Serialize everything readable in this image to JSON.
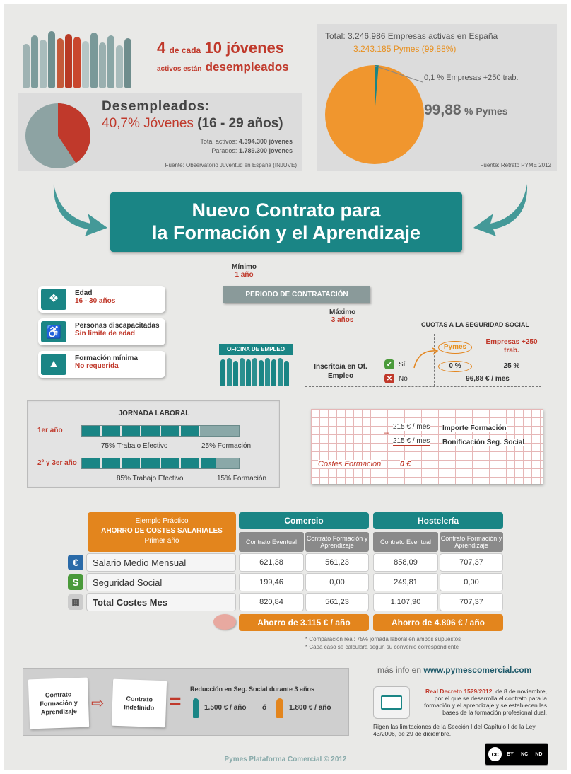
{
  "top_left": {
    "youth_line1_num1": "4",
    "youth_line1_mid": "de cada",
    "youth_line1_num2": "10 jóvenes",
    "youth_line2_small": "activos están",
    "youth_line2_big": "desempleados",
    "desempleados_title": "Desempleados:",
    "desempleados_pct": "40,7% Jóvenes",
    "desempleados_range": "(16 - 29 años)",
    "total_activos_label": "Total activos:",
    "total_activos_value": "4.394.300 jóvenes",
    "parados_label": "Parados:",
    "parados_value": "1.789.300 jóvenes",
    "source": "Fuente: Observatorio Juventud en España (INJUVE)",
    "pie_pct": 40.7
  },
  "top_right": {
    "total_label": "Total:",
    "total_text": "3.246.986 Empresas activas en España",
    "pymes_text": "3.243.185 Pymes (99,88%)",
    "big_companies": "0,1 % Empresas +250 trab.",
    "pymes_big_num": "99,88",
    "pymes_big_label": "% Pymes",
    "source": "Fuente: Retrato PYME 2012",
    "pie_pct": 99.88
  },
  "title": {
    "line1": "Nuevo Contrato para",
    "line2": "la Formación y el Aprendizaje"
  },
  "requirements": [
    {
      "label": "Edad",
      "value": "16 - 30 años",
      "icon": "people-icon"
    },
    {
      "label": "Personas discapacitadas",
      "value": "Sin límite de edad",
      "icon": "wheelchair-icon"
    },
    {
      "label": "Formación mínima",
      "value": "No requerida",
      "icon": "graduation-cap-icon"
    }
  ],
  "periodo": {
    "min_label": "Mínimo",
    "min_value": "1 año",
    "bar_label": "PERIODO DE CONTRATACIÓN",
    "max_label": "Máximo",
    "max_value": "3 años"
  },
  "oficina": {
    "label": "OFICINA DE EMPLEO"
  },
  "cuotas": {
    "title": "CUOTAS A LA SEGURIDAD SOCIAL",
    "col_pymes": "Pymes",
    "col_empresas": "Empresas +250 trab.",
    "row_label": "Inscrito/a en Of. Empleo",
    "si_label": "Sí",
    "si_pymes": "0 %",
    "si_empresas": "25 %",
    "no_label": "No",
    "no_value": "96,88 € / mes"
  },
  "jornada": {
    "title": "JORNADA LABORAL",
    "row1_label": "1er año",
    "row1_effective": "75% Trabajo Efectivo",
    "row1_formation": "25% Formación",
    "row1_pct": 75,
    "row2_label": "2º y 3er año",
    "row2_effective": "85% Trabajo Efectivo",
    "row2_formation": "15% Formación",
    "row2_pct": 85
  },
  "costes": {
    "line1_amount": "215 € / mes",
    "line1_label": "Importe Formación",
    "line2_amount": "215 € / mes",
    "line2_label": "Bonificación Seg. Social",
    "result_label": "Costes Formación",
    "result_value": "0 €"
  },
  "ejemplo": {
    "header_line1": "Ejemplo Práctico",
    "header_line2": "AHORRO DE COSTES SALARIALES",
    "header_line3": "Primer año",
    "sector1": "Comercio",
    "sector2": "Hostelería",
    "col_eventual": "Contrato Eventual",
    "col_formacion": "Contrato Formación y Aprendizaje",
    "rows": [
      {
        "label": "Salario Medio Mensual",
        "icon": "euro-icon",
        "values": [
          "621,38",
          "561,23",
          "858,09",
          "707,37"
        ]
      },
      {
        "label": "Seguridad Social",
        "icon": "shield-icon",
        "values": [
          "199,46",
          "0,00",
          "249,81",
          "0,00"
        ]
      },
      {
        "label": "Total Costes Mes",
        "icon": "calculator-icon",
        "values": [
          "820,84",
          "561,23",
          "1.107,90",
          "707,37"
        ]
      }
    ],
    "ahorro1": "Ahorro de 3.115 € / año",
    "ahorro2": "Ahorro de 4.806 € / año",
    "note1": "* Comparación real: 75% jornada laboral en ambos supuestos",
    "note2": "* Cada caso se calculará según su convenio correspondiente"
  },
  "bottom": {
    "card1": "Contrato Formación y Aprendizaje",
    "arrow": "⇨",
    "card2": "Contrato Indefinido",
    "equals": "=",
    "reduction_title": "Reducción en Seg. Social durante 3 años",
    "male_value": "1.500 € / año",
    "or": "ó",
    "female_value": "1.800 € / año",
    "mas_info_prefix": "más info en",
    "mas_info_url": "www.pymescomercial.com",
    "decreto_bold": "Real Decreto 1529/2012",
    "decreto_text": ", de 8 de noviembre, por el que se desarrolla el contrato para la formación y el aprendizaje y se establecen las bases de la formación profesional dual.",
    "rigen_text": "Rigen las limitaciones de la Sección I del Capítulo I de la Ley 43/2006, de 29 de diciembre.",
    "footer": "Pymes Plataforma Comercial © 2012",
    "cc_label": "cc",
    "cc_by": "BY",
    "cc_nc": "NC",
    "cc_nd": "ND"
  },
  "colors": {
    "teal": "#1a8585",
    "red": "#c0392b",
    "orange": "#e3851d",
    "grey": "#8a8a8a"
  }
}
